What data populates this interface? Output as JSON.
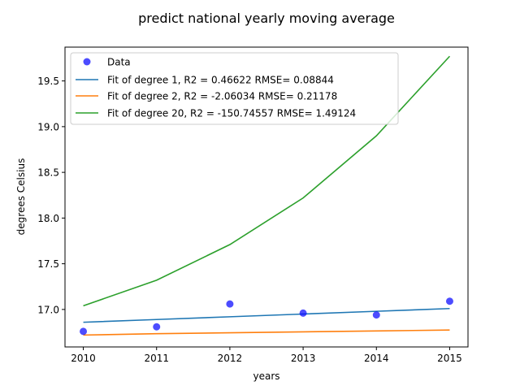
{
  "chart_data": {
    "type": "line",
    "title": "predict national yearly moving average",
    "xlabel": "years",
    "ylabel": "degrees Celsius",
    "xlim": [
      2009.75,
      2015.25
    ],
    "ylim": [
      16.59,
      19.87
    ],
    "xticks": [
      2010,
      2011,
      2012,
      2013,
      2014,
      2015
    ],
    "xtick_labels": [
      "2010",
      "2011",
      "2012",
      "2013",
      "2014",
      "2015"
    ],
    "yticks": [
      17.0,
      17.5,
      18.0,
      18.5,
      19.0,
      19.5
    ],
    "ytick_labels": [
      "17.0",
      "17.5",
      "18.0",
      "18.5",
      "19.0",
      "19.5"
    ],
    "grid": false,
    "legend_position": "top-left",
    "scatter": {
      "name": "Data",
      "color": "#0000ff",
      "x": [
        2010,
        2011,
        2012,
        2013,
        2014,
        2015
      ],
      "y": [
        16.76,
        16.81,
        17.06,
        16.96,
        16.94,
        17.09
      ]
    },
    "series": [
      {
        "name": "Fit of degree 1, R2 = 0.46622 RMSE= 0.08844",
        "color": "#1f77b4",
        "x": [
          2010,
          2011,
          2012,
          2013,
          2014,
          2015
        ],
        "y": [
          16.86,
          16.89,
          16.92,
          16.95,
          16.98,
          17.01
        ]
      },
      {
        "name": "Fit of degree 2, R2 = -2.06034 RMSE= 0.21178",
        "color": "#ff7f0e",
        "x": [
          2010,
          2011,
          2012,
          2013,
          2014,
          2015
        ],
        "y": [
          16.72,
          16.735,
          16.745,
          16.755,
          16.765,
          16.775
        ]
      },
      {
        "name": "Fit of degree 20, R2 = -150.74557 RMSE= 1.49124",
        "color": "#2ca02c",
        "x": [
          2010,
          2011,
          2012,
          2013,
          2014,
          2015
        ],
        "y": [
          17.04,
          17.32,
          17.71,
          18.22,
          18.9,
          19.77
        ]
      }
    ]
  }
}
